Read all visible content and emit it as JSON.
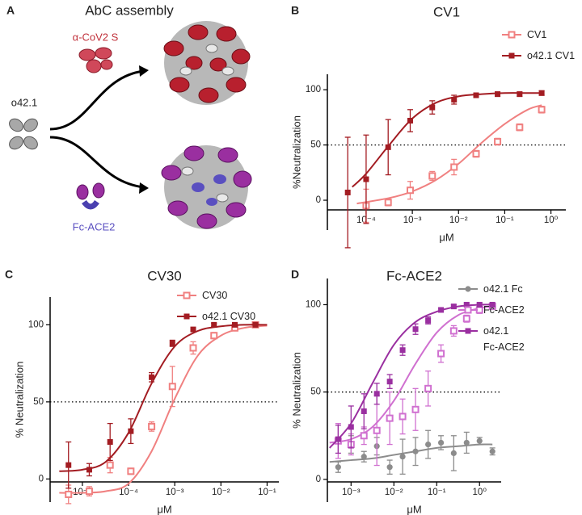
{
  "panel_a": {
    "label": "A",
    "title": "AbC assembly",
    "antibody": "α-CoV2 S",
    "scaffold": "o42.1",
    "receptor": "Fc-ACE2"
  },
  "chart_data": [
    {
      "type": "dose-response",
      "panel_label": "B",
      "title": "CV1",
      "x_label": "μM",
      "y_label": "%Neutralization",
      "xscale": "log",
      "xlim": [
        1.45e-05,
        2.1
      ],
      "ylim": [
        -27,
        114
      ],
      "xticks": [
        {
          "value": 0.0001,
          "label": "10⁻⁴"
        },
        {
          "value": 0.001,
          "label": "10⁻³"
        },
        {
          "value": 0.01,
          "label": "10⁻²"
        },
        {
          "value": 0.1,
          "label": "10⁻¹"
        },
        {
          "value": 1,
          "label": "10⁰"
        }
      ],
      "yticks": [
        0,
        50,
        100
      ],
      "reference_line": 50,
      "legend": "upper right",
      "series": [
        {
          "name": "CV1",
          "color": "#f08080",
          "marker": "open-square",
          "x": [
            0.0001,
            0.0003,
            0.0009,
            0.0027,
            0.008,
            0.024,
            0.07,
            0.21,
            0.63
          ],
          "values": [
            -5,
            -2,
            9,
            22,
            30,
            42,
            53,
            66,
            82
          ],
          "errors": [
            15,
            3,
            8,
            4,
            7,
            3,
            3,
            3,
            3
          ],
          "fit_x": [
            6.3e-05,
            0.000316,
            0.001,
            0.00316,
            0.01,
            0.0316,
            0.1,
            0.316,
            0.631
          ],
          "fit_values": [
            -3,
            2,
            8,
            18,
            33,
            52,
            69,
            82,
            86
          ]
        },
        {
          "name": "o42.1 CV1",
          "color": "#a31c22",
          "marker": "square",
          "x": [
            4e-05,
            0.0001,
            0.0003,
            0.0009,
            0.0027,
            0.008,
            0.024,
            0.07,
            0.21,
            0.63
          ],
          "values": [
            7,
            19,
            48,
            72,
            84,
            91,
            95,
            96,
            96,
            97
          ],
          "errors": [
            50,
            40,
            25,
            10,
            6,
            4,
            2,
            2,
            2,
            2
          ],
          "fit_x": [
            5e-05,
            0.0001,
            0.000316,
            0.001,
            0.00316,
            0.01,
            0.0316,
            0.1,
            0.316,
            0.631
          ],
          "fit_values": [
            12,
            24,
            50,
            74,
            88,
            94,
            96,
            97,
            97,
            97
          ]
        }
      ]
    },
    {
      "type": "dose-response",
      "panel_label": "C",
      "title": "CV30",
      "x_label": "μM",
      "y_label": "% Neutralization",
      "xscale": "log",
      "xlim": [
        2e-06,
        0.18
      ],
      "ylim": [
        -15,
        118
      ],
      "xticks": [
        {
          "value": 1e-05,
          "label": "10⁻⁵"
        },
        {
          "value": 0.0001,
          "label": "10⁻⁴"
        },
        {
          "value": 0.001,
          "label": "10⁻³"
        },
        {
          "value": 0.01,
          "label": "10⁻²"
        },
        {
          "value": 0.1,
          "label": "10⁻¹"
        }
      ],
      "yticks": [
        0,
        50,
        100
      ],
      "reference_line": 50,
      "legend": "upper right",
      "series": [
        {
          "name": "CV30",
          "color": "#f08080",
          "marker": "open-square",
          "x": [
            5e-06,
            1.41e-05,
            3.98e-05,
            0.000112,
            0.000316,
            0.00089,
            0.00251,
            0.00708,
            0.02,
            0.056
          ],
          "values": [
            -10,
            -8,
            9,
            5,
            34,
            60,
            85,
            93,
            98,
            100
          ],
          "errors": [
            6,
            3,
            5,
            2,
            3,
            13,
            4,
            2,
            2,
            1
          ],
          "fit_x": [
            3.16e-06,
            1e-05,
            3.16e-05,
            0.0001,
            0.000316,
            0.001,
            0.00316,
            0.01,
            0.0316,
            0.1
          ],
          "fit_values": [
            -9,
            -9,
            -8,
            -3,
            18,
            52,
            80,
            93,
            98,
            99.5
          ]
        },
        {
          "name": "o42.1 CV30",
          "color": "#a31c22",
          "marker": "square",
          "x": [
            5e-06,
            1.41e-05,
            3.98e-05,
            0.000112,
            0.000316,
            0.00089,
            0.00251,
            0.00708,
            0.02,
            0.056
          ],
          "values": [
            9,
            6,
            24,
            31,
            66,
            88,
            97,
            100,
            100,
            100
          ],
          "errors": [
            15,
            4,
            12,
            8,
            3,
            2,
            1,
            1,
            1,
            1
          ],
          "fit_x": [
            3.16e-06,
            1e-05,
            3.16e-05,
            0.0001,
            0.000316,
            0.001,
            0.00316,
            0.01,
            0.0316,
            0.1
          ],
          "fit_values": [
            5,
            6,
            11,
            30,
            62,
            86,
            96,
            99,
            100,
            100
          ]
        }
      ]
    },
    {
      "type": "dose-response",
      "panel_label": "D",
      "title": "Fc-ACE2",
      "x_label": "μM",
      "y_label": "% Neutralization",
      "xscale": "log",
      "xlim": [
        0.00028,
        3.2
      ],
      "ylim": [
        -13,
        115
      ],
      "xticks": [
        {
          "value": 0.001,
          "label": "10⁻³"
        },
        {
          "value": 0.01,
          "label": "10⁻²"
        },
        {
          "value": 0.1,
          "label": "10⁻¹"
        },
        {
          "value": 1,
          "label": "10⁰"
        }
      ],
      "yticks": [
        0,
        50,
        100
      ],
      "reference_line": 50,
      "legend": "upper right",
      "series": [
        {
          "name": "o42.1 Fc",
          "color": "#8c8c8c",
          "marker": "circle",
          "x": [
            0.0005,
            0.001,
            0.002,
            0.004,
            0.008,
            0.016,
            0.032,
            0.063,
            0.126,
            0.25,
            0.5,
            1,
            2
          ],
          "values": [
            7,
            20,
            13,
            19,
            7,
            13,
            16,
            20,
            21,
            15,
            21,
            22,
            16
          ],
          "errors": [
            3,
            5,
            3,
            5,
            4,
            10,
            8,
            8,
            4,
            10,
            6,
            2,
            2
          ],
          "fit_x": [
            0.000316,
            0.001,
            0.00316,
            0.01,
            0.0316,
            0.1,
            0.316,
            1,
            2
          ],
          "fit_values": [
            10,
            11,
            12,
            14,
            16,
            18,
            19,
            20,
            20
          ]
        },
        {
          "name": "Fc-ACE2",
          "color": "#d070d0",
          "marker": "open-square",
          "x": [
            0.0005,
            0.001,
            0.002,
            0.004,
            0.008,
            0.016,
            0.032,
            0.063,
            0.126,
            0.25,
            0.5,
            1,
            2
          ],
          "values": [
            22,
            20,
            25,
            28,
            35,
            36,
            40,
            52,
            72,
            85,
            92,
            97,
            99
          ],
          "errors": [
            10,
            6,
            5,
            20,
            15,
            10,
            12,
            10,
            5,
            3,
            2,
            2,
            1
          ],
          "fit_x": [
            0.000316,
            0.001,
            0.00316,
            0.01,
            0.0316,
            0.1,
            0.316,
            1,
            2
          ],
          "fit_values": [
            21,
            23,
            30,
            45,
            66,
            84,
            94,
            98,
            99
          ]
        },
        {
          "name": "o42.1\nFc-ACE2",
          "color": "#9a2fa0",
          "marker": "square",
          "x": [
            0.0005,
            0.001,
            0.002,
            0.004,
            0.008,
            0.016,
            0.032,
            0.063,
            0.126,
            0.25,
            0.5,
            1,
            2
          ],
          "values": [
            23,
            30,
            39,
            49,
            56,
            74,
            86,
            91,
            97,
            99,
            100,
            100,
            100
          ],
          "errors": [
            8,
            12,
            10,
            6,
            4,
            3,
            3,
            2,
            1,
            1,
            1,
            1,
            1
          ],
          "fit_x": [
            0.000316,
            0.001,
            0.00316,
            0.01,
            0.0316,
            0.1,
            0.316,
            1,
            2
          ],
          "fit_values": [
            18,
            32,
            55,
            77,
            90,
            96,
            99,
            100,
            100
          ]
        }
      ]
    }
  ]
}
